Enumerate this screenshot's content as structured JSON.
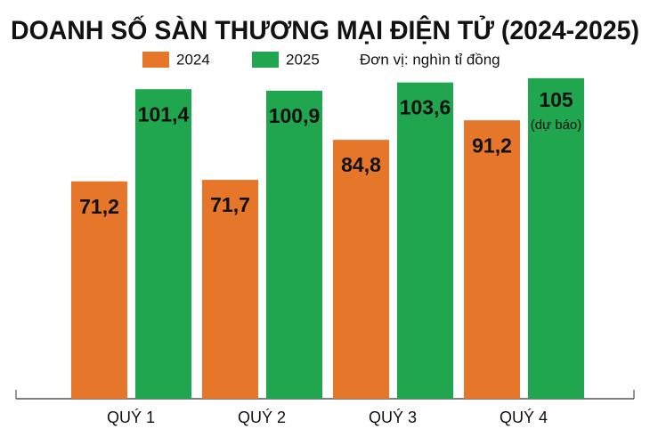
{
  "chart_data": {
    "type": "bar",
    "title": "DOANH SỐ SÀN THƯƠNG MẠI ĐIỆN TỬ (2024-2025)",
    "subtitle": "Đơn vị: nghìn tỉ đồng",
    "categories": [
      "QUÝ 1",
      "QUÝ 2",
      "QUÝ 3",
      "QUÝ 4"
    ],
    "series": [
      {
        "name": "2024",
        "color": "#e5762a",
        "values": [
          71.2,
          71.7,
          84.8,
          91.2
        ],
        "value_labels": [
          "71,2",
          "71,7",
          "84,8",
          "91,2"
        ]
      },
      {
        "name": "2025",
        "color": "#1fa64e",
        "values": [
          101.4,
          100.9,
          103.6,
          105
        ],
        "value_labels": [
          "101,4",
          "100,9",
          "103,6",
          "105"
        ]
      }
    ],
    "annotation": "(dự báo)"
  }
}
